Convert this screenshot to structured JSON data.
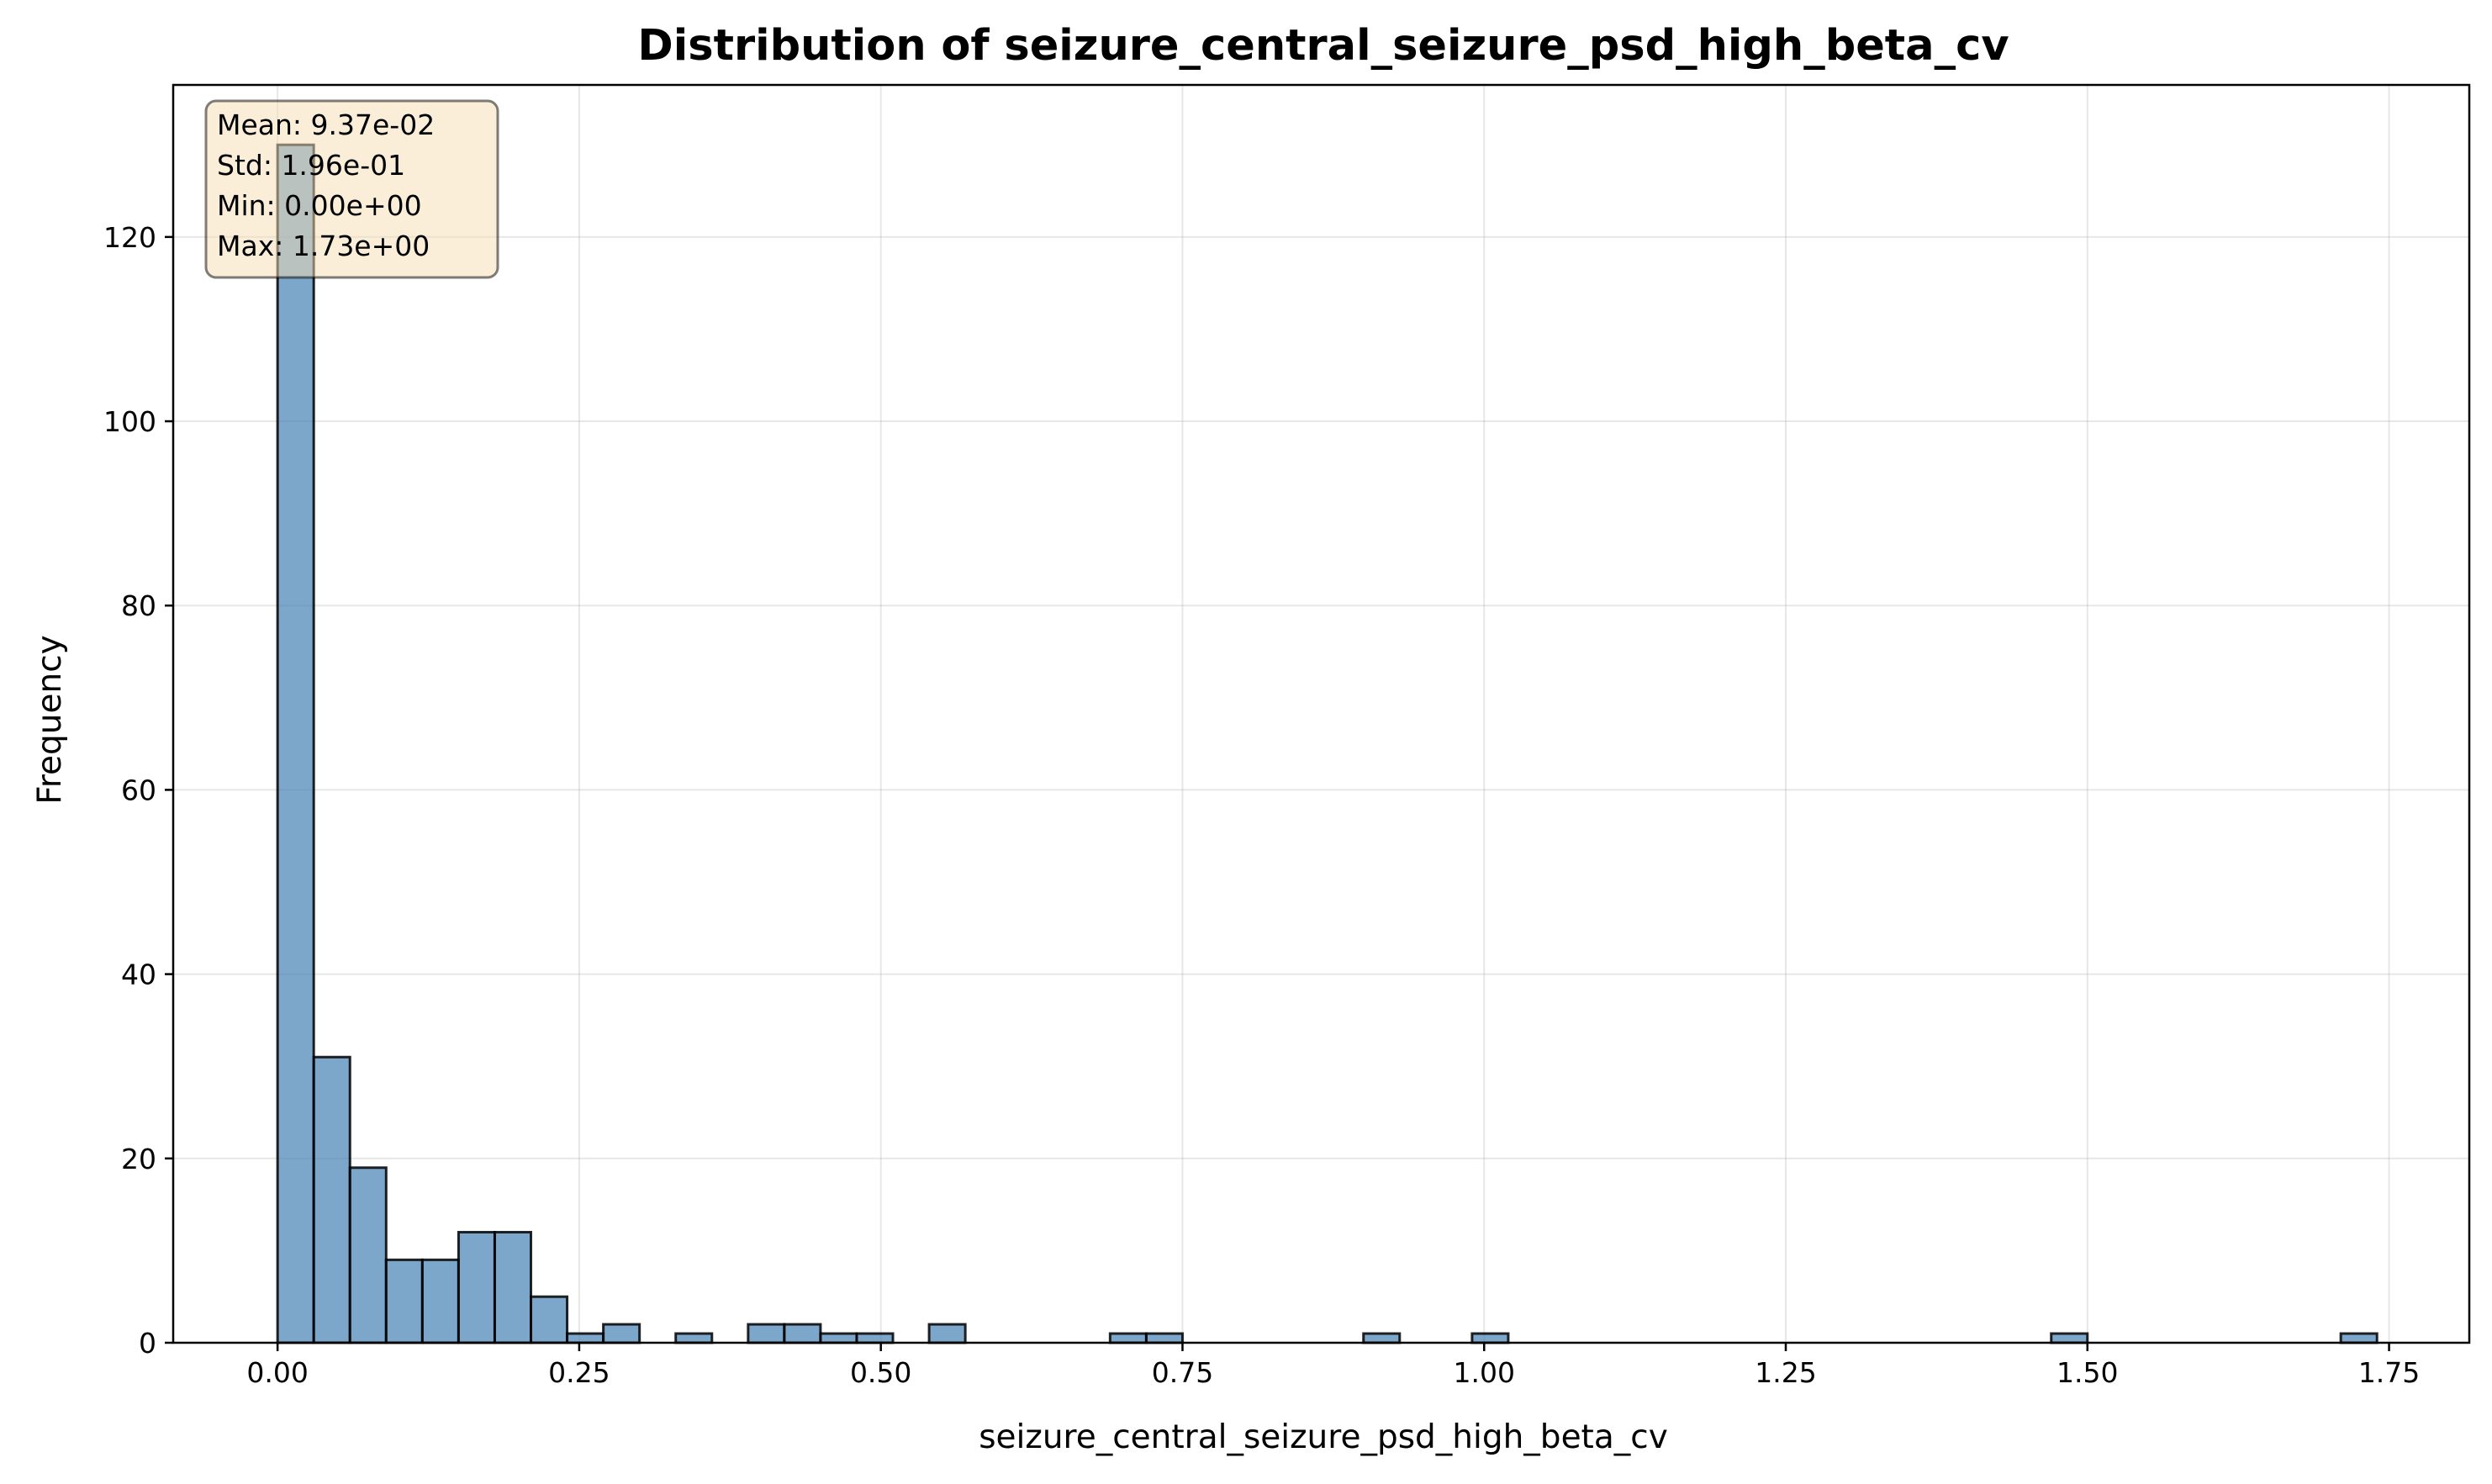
{
  "chart_data": {
    "type": "bar",
    "title": "Distribution of seizure_central_seizure_psd_high_beta_cv",
    "xlabel": "seizure_central_seizure_psd_high_beta_cv",
    "ylabel": "Frequency",
    "xlim": [
      -0.0865,
      1.8165
    ],
    "ylim": [
      0,
      136.5
    ],
    "xticks": [
      {
        "value": 0.0,
        "label": "0.00"
      },
      {
        "value": 0.25,
        "label": "0.25"
      },
      {
        "value": 0.5,
        "label": "0.50"
      },
      {
        "value": 0.75,
        "label": "0.75"
      },
      {
        "value": 1.0,
        "label": "1.00"
      },
      {
        "value": 1.25,
        "label": "1.25"
      },
      {
        "value": 1.5,
        "label": "1.50"
      },
      {
        "value": 1.75,
        "label": "1.75"
      }
    ],
    "yticks": [
      {
        "value": 0,
        "label": "0"
      },
      {
        "value": 20,
        "label": "20"
      },
      {
        "value": 40,
        "label": "40"
      },
      {
        "value": 60,
        "label": "60"
      },
      {
        "value": 80,
        "label": "80"
      },
      {
        "value": 100,
        "label": "100"
      },
      {
        "value": 120,
        "label": "120"
      }
    ],
    "grid": true,
    "bin_start": 0.0,
    "bin_width": 0.03,
    "values": [
      130,
      31,
      19,
      9,
      9,
      12,
      12,
      5,
      1,
      2,
      0,
      1,
      0,
      2,
      2,
      1,
      1,
      0,
      2,
      0,
      0,
      0,
      0,
      1,
      1,
      0,
      0,
      0,
      0,
      0,
      1,
      0,
      0,
      1,
      0,
      0,
      0,
      0,
      0,
      0,
      0,
      0,
      0,
      0,
      0,
      0,
      0,
      0,
      0,
      1,
      0,
      0,
      0,
      0,
      0,
      0,
      0,
      1
    ],
    "stats": {
      "lines": [
        "Mean: 9.37e-02",
        "Std: 1.96e-01",
        "Min: 0.00e+00",
        "Max: 1.73e+00"
      ],
      "placement": "top-left"
    },
    "colors": {
      "bar_fill": "#4682b4",
      "bar_edge": "#000000",
      "stats_box_fill": "#f5deb3",
      "stats_box_edge": "#000000"
    }
  }
}
